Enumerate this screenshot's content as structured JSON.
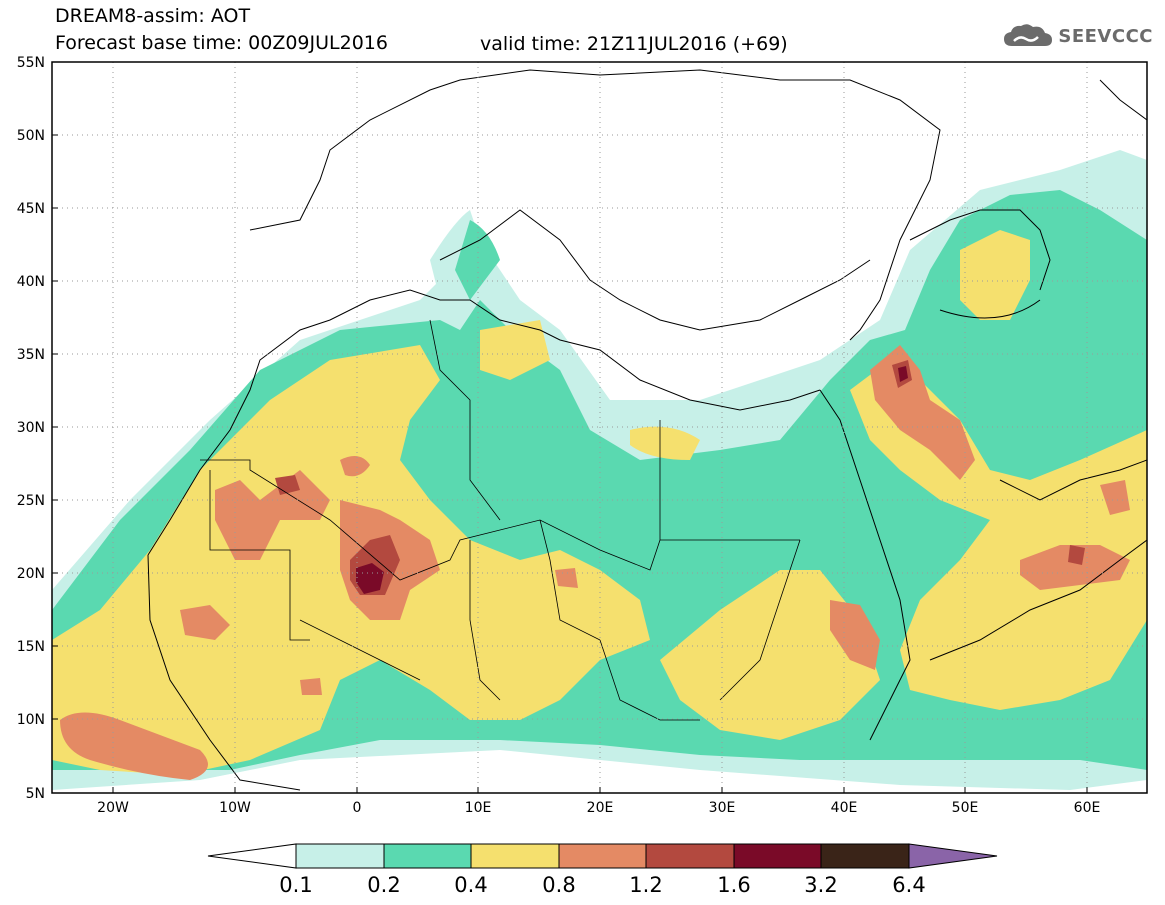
{
  "header": {
    "title_line1": "DREAM8-assim: AOT",
    "base_time": "Forecast base time: 00Z09JUL2016",
    "valid_time": "valid time: 21Z11JUL2016 (+69)",
    "logo_text": "SEEVCCC",
    "logo_icon": "cloud-icon"
  },
  "map": {
    "projection": "lat-lon",
    "lon_range": [
      -25,
      65
    ],
    "lat_range": [
      5,
      55
    ],
    "lat_labels": [
      "55N",
      "50N",
      "45N",
      "40N",
      "35N",
      "30N",
      "25N",
      "20N",
      "15N",
      "10N",
      "5N"
    ],
    "lon_labels": [
      "20W",
      "10W",
      "0",
      "10E",
      "20E",
      "30E",
      "40E",
      "50E",
      "60E"
    ],
    "grid": "dotted",
    "colors": {
      "land_outline": "#000000",
      "grid": "#9a9a9a"
    }
  },
  "colorbar": {
    "labels": [
      "0.1",
      "0.2",
      "0.4",
      "0.8",
      "1.2",
      "1.6",
      "3.2",
      "6.4"
    ],
    "colors": [
      "#ffffff",
      "#c7f0e8",
      "#5ad9b0",
      "#f5e06e",
      "#e48a64",
      "#b3493f",
      "#7a0a28",
      "#3a2418",
      "#8a64a8"
    ]
  }
}
